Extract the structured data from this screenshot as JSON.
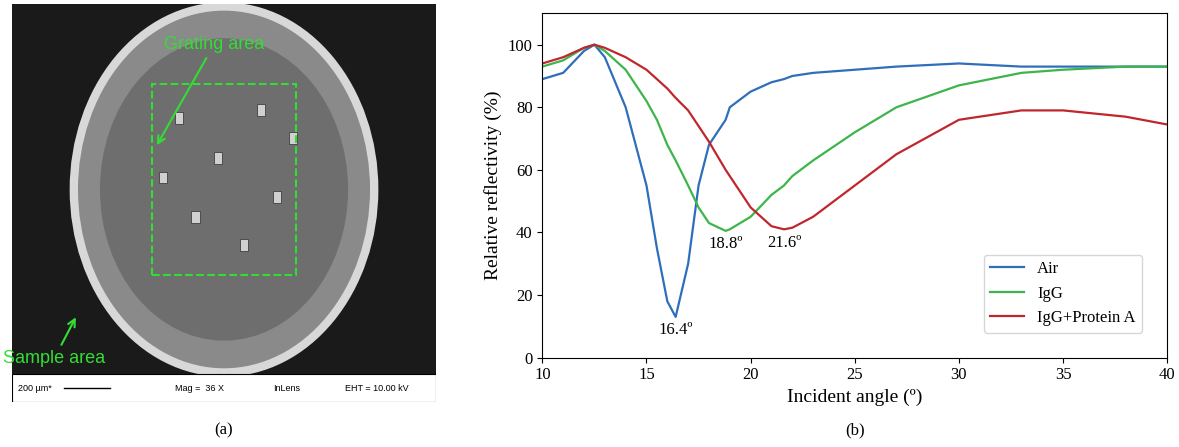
{
  "chart_data": {
    "type": "line",
    "xlabel": "Incident angle (º)",
    "ylabel": "Relative reflectivity (%)",
    "x": [
      10,
      11,
      12,
      12.5,
      13,
      14,
      15,
      15.5,
      16,
      16.4,
      17,
      17.5,
      18,
      18.8,
      19,
      20,
      21,
      21.6,
      22,
      23,
      25,
      27,
      30,
      33,
      35,
      38,
      40
    ],
    "series": [
      {
        "name": "Air",
        "color": "#2f6eba",
        "values": [
          89,
          91,
          98,
          100,
          96,
          80,
          55,
          35,
          18,
          13,
          30,
          55,
          68,
          76,
          80,
          85,
          88,
          89,
          90,
          91,
          92,
          93,
          94,
          93,
          93,
          93,
          93
        ]
      },
      {
        "name": "IgG",
        "color": "#3db54a",
        "values": [
          93,
          95,
          99,
          100,
          98,
          92,
          82,
          76,
          68,
          63,
          55,
          48,
          43,
          40.5,
          41,
          45,
          52,
          55,
          58,
          63,
          72,
          80,
          87,
          91,
          92,
          93,
          93
        ]
      },
      {
        "name": "IgG+Protein A",
        "color": "#c0272d",
        "values": [
          94,
          96,
          99,
          100,
          99,
          96,
          92,
          89,
          86,
          83,
          79,
          74,
          69,
          60,
          58,
          48,
          42,
          41,
          41.5,
          45,
          55,
          65,
          76,
          79,
          79,
          77,
          74.5
        ]
      }
    ],
    "annotations": [
      {
        "text": "16.4º",
        "x": 16.4,
        "y": 13
      },
      {
        "text": "18.8º",
        "x": 18.8,
        "y": 40.5
      },
      {
        "text": "21.6º",
        "x": 21.6,
        "y": 41
      }
    ],
    "xlim": [
      10,
      40
    ],
    "xticks": [
      10,
      15,
      20,
      25,
      30,
      35,
      40
    ],
    "ylim": [
      0,
      110
    ],
    "yticks": [
      0,
      20,
      40,
      60,
      80,
      100
    ],
    "grid": false,
    "legend": "lower right"
  },
  "micrograph": {
    "grating_label": "Grating area",
    "sample_label": "Sample area",
    "info_bar": [
      "200 µm*",
      "Mag =  36 X",
      "InLens",
      "EHT = 10.00 kV"
    ]
  },
  "panel_labels": [
    "(a)",
    "(b)"
  ]
}
